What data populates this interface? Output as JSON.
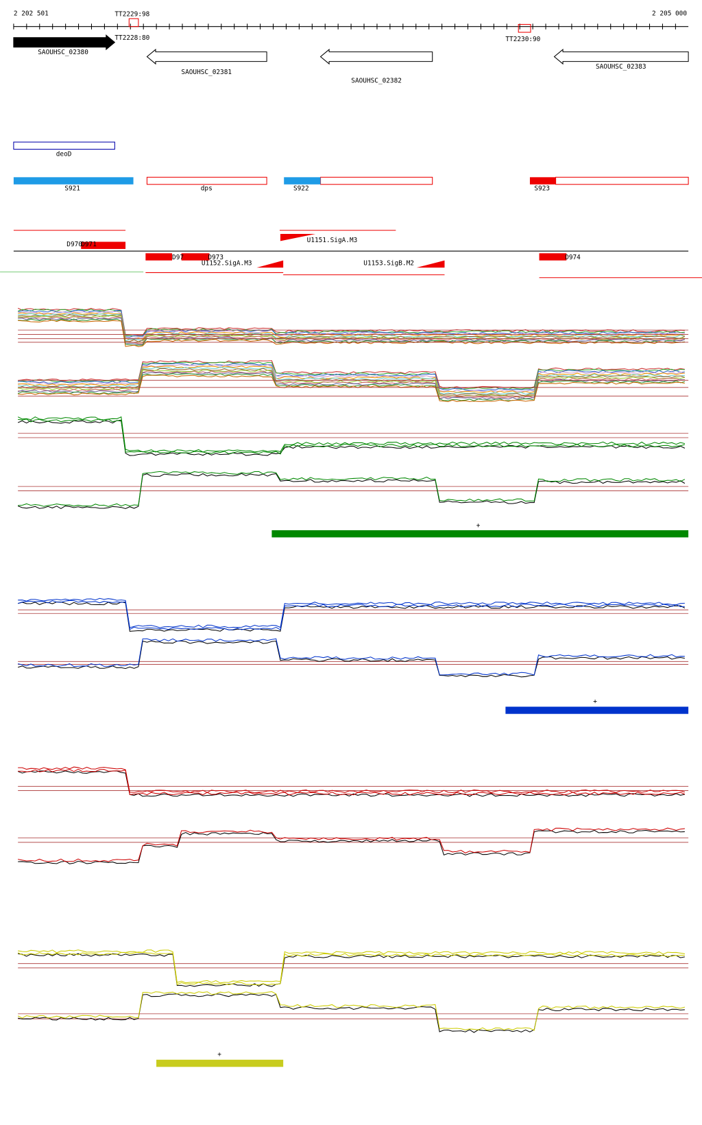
{
  "ruler": {
    "start": "2 202 501",
    "end": "2 205 000",
    "terminators": [
      "TT2229:98",
      "TT2228:80",
      "TT2230:90"
    ]
  },
  "genes": [
    "SAOUHSC_02380",
    "SAOUHSC_02381",
    "SAOUHSC_02382",
    "SAOUHSC_02383"
  ],
  "annotations": [
    "deoD",
    "S921",
    "dps",
    "S922",
    "S923"
  ],
  "segments": [
    "D970",
    "D971",
    "D97",
    "D973",
    "D974"
  ],
  "promoters": [
    "U1151.SigA.M3",
    "U1152.SigA.M3",
    "U1153.SigB.M2"
  ],
  "clusters": [
    {
      "marker": "+"
    },
    {
      "marker": "+"
    },
    {
      "marker": "+"
    }
  ]
}
